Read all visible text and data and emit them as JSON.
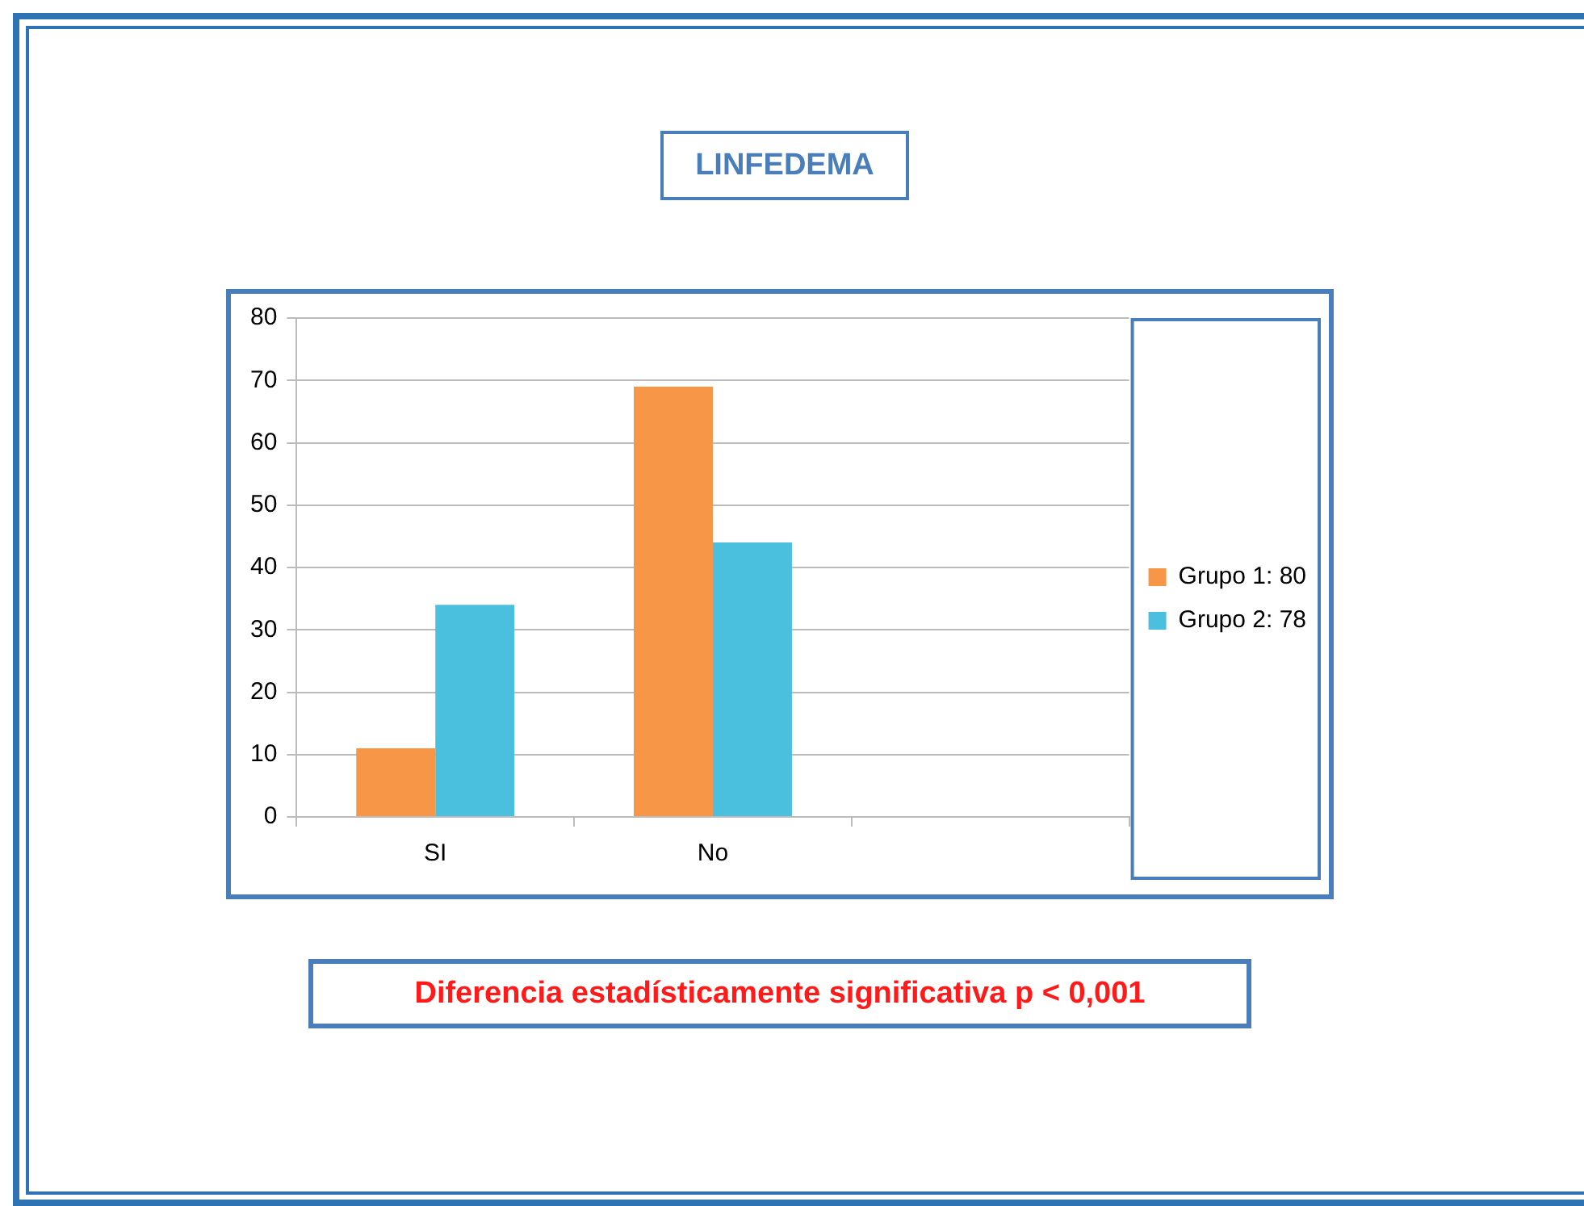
{
  "chart_data": {
    "type": "bar",
    "title": "LINFEDEMA",
    "categories": [
      "SI",
      "No",
      null
    ],
    "series": [
      {
        "name": "Grupo 1: 80",
        "color": "#f79646",
        "values": [
          11,
          69,
          null
        ]
      },
      {
        "name": "Grupo 2: 78",
        "color": "#4bc0de",
        "values": [
          34,
          44,
          null
        ]
      }
    ],
    "ylim": [
      0,
      80
    ],
    "yticks": [
      0,
      10,
      20,
      30,
      40,
      50,
      60,
      70,
      80
    ],
    "grid": "y",
    "legend": "right",
    "annotations": [
      "Diferencia estadísticamente significativa p < 0,001"
    ]
  }
}
